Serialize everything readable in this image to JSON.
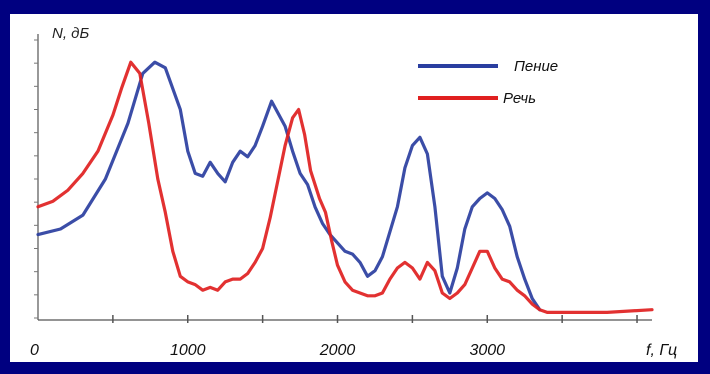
{
  "chart_data": {
    "type": "line",
    "ylabel": "N, дБ",
    "xlabel": "f, Гц",
    "x_ticks": [
      "0",
      "1000",
      "2000",
      "3000"
    ],
    "xlim": [
      0,
      4100
    ],
    "ylim": [
      0,
      100
    ],
    "grid": false,
    "legend_position": "top-right",
    "series": [
      {
        "name": "Пение",
        "color": "#2a3ea0",
        "points": [
          [
            0,
            30
          ],
          [
            150,
            32
          ],
          [
            300,
            37
          ],
          [
            450,
            50
          ],
          [
            600,
            70
          ],
          [
            700,
            88
          ],
          [
            780,
            92
          ],
          [
            850,
            90
          ],
          [
            950,
            75
          ],
          [
            1000,
            60
          ],
          [
            1050,
            52
          ],
          [
            1100,
            51
          ],
          [
            1150,
            56
          ],
          [
            1200,
            52
          ],
          [
            1250,
            49
          ],
          [
            1300,
            56
          ],
          [
            1350,
            60
          ],
          [
            1400,
            58
          ],
          [
            1450,
            62
          ],
          [
            1500,
            69
          ],
          [
            1560,
            78
          ],
          [
            1650,
            69
          ],
          [
            1700,
            60
          ],
          [
            1750,
            52
          ],
          [
            1800,
            48
          ],
          [
            1850,
            40
          ],
          [
            1900,
            34
          ],
          [
            1950,
            30
          ],
          [
            2000,
            27
          ],
          [
            2050,
            24
          ],
          [
            2100,
            23
          ],
          [
            2150,
            20
          ],
          [
            2200,
            15
          ],
          [
            2250,
            17
          ],
          [
            2300,
            22
          ],
          [
            2350,
            31
          ],
          [
            2400,
            40
          ],
          [
            2450,
            54
          ],
          [
            2500,
            62
          ],
          [
            2550,
            65
          ],
          [
            2600,
            59
          ],
          [
            2650,
            40
          ],
          [
            2700,
            15
          ],
          [
            2750,
            9
          ],
          [
            2800,
            18
          ],
          [
            2850,
            32
          ],
          [
            2900,
            40
          ],
          [
            2950,
            43
          ],
          [
            3000,
            45
          ],
          [
            3050,
            43
          ],
          [
            3100,
            39
          ],
          [
            3150,
            33
          ],
          [
            3200,
            22
          ],
          [
            3250,
            14
          ],
          [
            3300,
            7
          ],
          [
            3350,
            3
          ]
        ]
      },
      {
        "name": "Речь",
        "color": "#e02020",
        "points": [
          [
            0,
            40
          ],
          [
            100,
            42
          ],
          [
            200,
            46
          ],
          [
            300,
            52
          ],
          [
            400,
            60
          ],
          [
            500,
            73
          ],
          [
            560,
            83
          ],
          [
            620,
            92
          ],
          [
            680,
            88
          ],
          [
            740,
            70
          ],
          [
            800,
            50
          ],
          [
            850,
            38
          ],
          [
            900,
            24
          ],
          [
            950,
            15
          ],
          [
            1000,
            13
          ],
          [
            1050,
            12
          ],
          [
            1100,
            10
          ],
          [
            1150,
            11
          ],
          [
            1200,
            10
          ],
          [
            1250,
            13
          ],
          [
            1300,
            14
          ],
          [
            1350,
            14
          ],
          [
            1400,
            16
          ],
          [
            1450,
            20
          ],
          [
            1500,
            25
          ],
          [
            1550,
            36
          ],
          [
            1600,
            49
          ],
          [
            1650,
            62
          ],
          [
            1700,
            72
          ],
          [
            1740,
            75
          ],
          [
            1780,
            66
          ],
          [
            1820,
            53
          ],
          [
            1880,
            43
          ],
          [
            1920,
            38
          ],
          [
            1960,
            28
          ],
          [
            2000,
            19
          ],
          [
            2050,
            13
          ],
          [
            2100,
            10
          ],
          [
            2150,
            9
          ],
          [
            2200,
            8
          ],
          [
            2250,
            8
          ],
          [
            2300,
            9
          ],
          [
            2350,
            14
          ],
          [
            2400,
            18
          ],
          [
            2450,
            20
          ],
          [
            2500,
            18
          ],
          [
            2550,
            14
          ],
          [
            2600,
            20
          ],
          [
            2650,
            17
          ],
          [
            2700,
            9
          ],
          [
            2750,
            7
          ],
          [
            2800,
            9
          ],
          [
            2850,
            12
          ],
          [
            2900,
            18
          ],
          [
            2950,
            24
          ],
          [
            3000,
            24
          ],
          [
            3050,
            18
          ],
          [
            3100,
            14
          ],
          [
            3150,
            13
          ],
          [
            3200,
            10
          ],
          [
            3250,
            8
          ],
          [
            3300,
            5
          ],
          [
            3350,
            3
          ],
          [
            3400,
            2
          ],
          [
            3600,
            2
          ],
          [
            3800,
            2
          ],
          [
            4100,
            3
          ]
        ]
      }
    ]
  }
}
